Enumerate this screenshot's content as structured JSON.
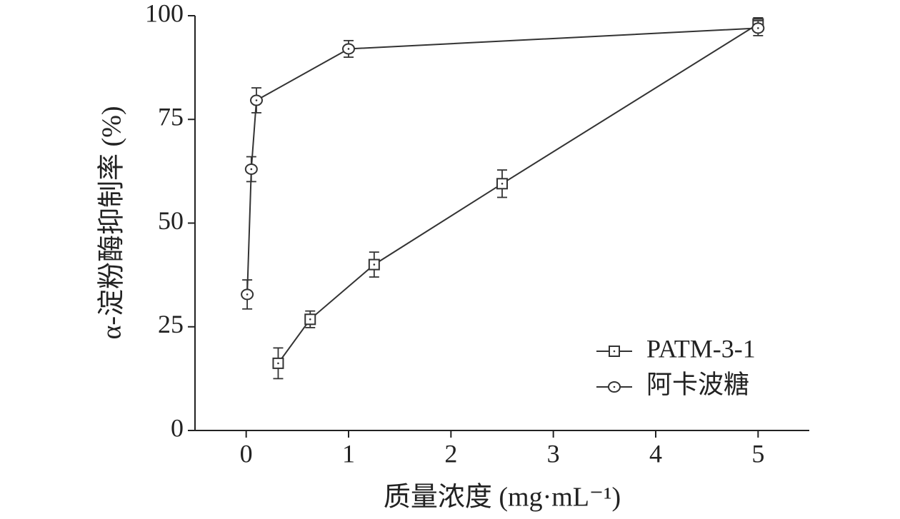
{
  "chart_data": {
    "type": "line",
    "x_label": "质量浓度 (mg·mL⁻¹)",
    "y_label": "α-淀粉酶抑制率 (%)",
    "xlim": [
      -0.5,
      5.5
    ],
    "xticks": [
      0,
      1,
      2,
      3,
      4,
      5
    ],
    "ylim": [
      0,
      100
    ],
    "yticks": [
      0,
      25,
      50,
      75,
      100
    ],
    "legend": "lower right",
    "series": [
      {
        "name": "PATM-3-1",
        "color": "#333333",
        "marker": "square",
        "x": [
          0.3125,
          0.625,
          1.25,
          2.5,
          5
        ],
        "values": [
          16.2,
          26.8,
          40,
          59.5,
          98
        ],
        "errors": [
          3.7,
          2,
          3,
          3.3,
          1.5
        ]
      },
      {
        "name": "阿卡波糖",
        "color": "#333333",
        "marker": "circle",
        "x": [
          0.01,
          0.05,
          0.1,
          1,
          5
        ],
        "values": [
          32.8,
          63,
          79.6,
          92,
          97
        ],
        "errors": [
          3.5,
          3,
          3,
          2,
          1.8
        ]
      }
    ]
  }
}
